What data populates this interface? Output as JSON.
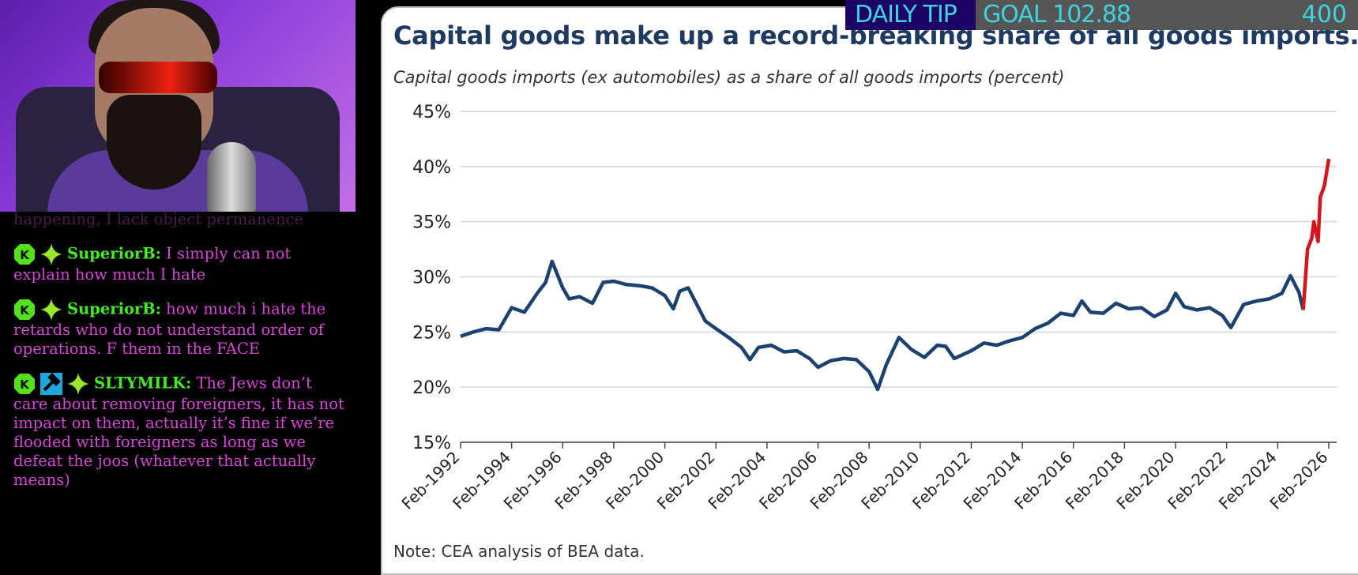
{
  "goal_bar": {
    "tip_label": "DAILY TIP",
    "goal_label": "GOAL 102.88",
    "goal_target": "400",
    "progress_fraction": 0.257,
    "colors": {
      "text": "#3fd3e0",
      "tip_bg": "#1c0266",
      "bar_bg": "#555555"
    }
  },
  "chat": {
    "faded_line": "happening, I lack object permanence",
    "messages": [
      {
        "user": "SuperiorB:",
        "text": "I simply can not explain how much I hate",
        "badges": [
          "kick-icon",
          "sparkle-icon"
        ]
      },
      {
        "user": "SuperiorB:",
        "text": "how much i hate the retards who do not understand order of operations. F them in the FACE",
        "badges": [
          "kick-icon",
          "sparkle-icon"
        ]
      },
      {
        "user": "SLTYMILK:",
        "text": "The Jews don’t care about removing foreigners, it has not impact on them, actually it’s fine if we’re flooded with foreigners as long as we defeat the joos (whatever that actually means)",
        "badges": [
          "kick-icon",
          "moderator-hammer-icon",
          "sparkle-icon"
        ]
      }
    ],
    "colors": {
      "text": "#d844d8",
      "username": "#42ef1e"
    }
  },
  "chart_data": {
    "type": "line",
    "title": "Capital goods make up a record-breaking share of all goods imports.",
    "subtitle": "Capital goods imports (ex automobiles) as a share of all goods imports (percent)",
    "note": "Note: CEA analysis of BEA data.",
    "ylim": [
      15,
      45
    ],
    "yticks": [
      "15%",
      "20%",
      "25%",
      "30%",
      "35%",
      "40%",
      "45%"
    ],
    "ytick_values": [
      15,
      20,
      25,
      30,
      35,
      40,
      45
    ],
    "xticks": [
      "Feb-1992",
      "Feb-1994",
      "Feb-1996",
      "Feb-1998",
      "Feb-2000",
      "Feb-2002",
      "Feb-2004",
      "Feb-2006",
      "Feb-2008",
      "Feb-2010",
      "Feb-2012",
      "Feb-2014",
      "Feb-2016",
      "Feb-2018",
      "Feb-2020",
      "Feb-2022",
      "Feb-2024",
      "Feb-2026"
    ],
    "xlim": [
      "1992-02",
      "2026-02"
    ],
    "grid": "horizontal",
    "series": [
      {
        "color": "#1b4170",
        "points": [
          [
            "1992-02",
            24.6
          ],
          [
            "1992-08",
            25.0
          ],
          [
            "1993-02",
            25.3
          ],
          [
            "1993-08",
            25.2
          ],
          [
            "1994-02",
            27.2
          ],
          [
            "1994-08",
            26.8
          ],
          [
            "1995-02",
            28.5
          ],
          [
            "1995-06",
            29.5
          ],
          [
            "1995-09",
            31.4
          ],
          [
            "1996-02",
            29.0
          ],
          [
            "1996-05",
            28.0
          ],
          [
            "1996-10",
            28.2
          ],
          [
            "1997-04",
            27.6
          ],
          [
            "1997-09",
            29.5
          ],
          [
            "1998-02",
            29.6
          ],
          [
            "1998-08",
            29.3
          ],
          [
            "1999-02",
            29.2
          ],
          [
            "1999-08",
            29.0
          ],
          [
            "2000-02",
            28.3
          ],
          [
            "2000-06",
            27.1
          ],
          [
            "2000-09",
            28.7
          ],
          [
            "2001-01",
            29.0
          ],
          [
            "2001-05",
            27.5
          ],
          [
            "2001-09",
            26.0
          ],
          [
            "2002-02",
            25.3
          ],
          [
            "2002-08",
            24.5
          ],
          [
            "2003-02",
            23.6
          ],
          [
            "2003-06",
            22.5
          ],
          [
            "2003-10",
            23.6
          ],
          [
            "2004-04",
            23.8
          ],
          [
            "2004-10",
            23.2
          ],
          [
            "2005-04",
            23.3
          ],
          [
            "2005-10",
            22.6
          ],
          [
            "2006-02",
            21.8
          ],
          [
            "2006-08",
            22.4
          ],
          [
            "2007-02",
            22.6
          ],
          [
            "2007-08",
            22.5
          ],
          [
            "2008-02",
            21.4
          ],
          [
            "2008-06",
            19.8
          ],
          [
            "2008-10",
            22.0
          ],
          [
            "2009-04",
            24.5
          ],
          [
            "2009-10",
            23.4
          ],
          [
            "2010-04",
            22.7
          ],
          [
            "2010-10",
            23.8
          ],
          [
            "2011-02",
            23.7
          ],
          [
            "2011-06",
            22.6
          ],
          [
            "2012-02",
            23.3
          ],
          [
            "2012-08",
            24.0
          ],
          [
            "2013-02",
            23.8
          ],
          [
            "2013-08",
            24.2
          ],
          [
            "2014-02",
            24.5
          ],
          [
            "2014-08",
            25.3
          ],
          [
            "2015-02",
            25.8
          ],
          [
            "2015-08",
            26.7
          ],
          [
            "2016-02",
            26.5
          ],
          [
            "2016-06",
            27.8
          ],
          [
            "2016-10",
            26.8
          ],
          [
            "2017-04",
            26.7
          ],
          [
            "2017-10",
            27.6
          ],
          [
            "2018-04",
            27.1
          ],
          [
            "2018-10",
            27.2
          ],
          [
            "2019-04",
            26.4
          ],
          [
            "2019-10",
            27.0
          ],
          [
            "2020-02",
            28.5
          ],
          [
            "2020-06",
            27.3
          ],
          [
            "2020-12",
            27.0
          ],
          [
            "2021-06",
            27.2
          ],
          [
            "2021-12",
            26.5
          ],
          [
            "2022-04",
            25.4
          ],
          [
            "2022-10",
            27.5
          ],
          [
            "2023-04",
            27.8
          ],
          [
            "2023-10",
            28.0
          ],
          [
            "2024-04",
            28.5
          ],
          [
            "2024-08",
            30.1
          ],
          [
            "2024-12",
            28.6
          ],
          [
            "2025-02",
            27.0
          ]
        ]
      },
      {
        "color": "#d6141c",
        "points": [
          [
            "2025-02",
            27.0
          ],
          [
            "2025-04",
            32.5
          ],
          [
            "2025-06",
            33.5
          ],
          [
            "2025-07",
            35.0
          ],
          [
            "2025-09",
            33.2
          ],
          [
            "2025-10",
            37.2
          ],
          [
            "2025-12",
            38.3
          ],
          [
            "2026-02",
            40.7
          ]
        ]
      }
    ]
  }
}
